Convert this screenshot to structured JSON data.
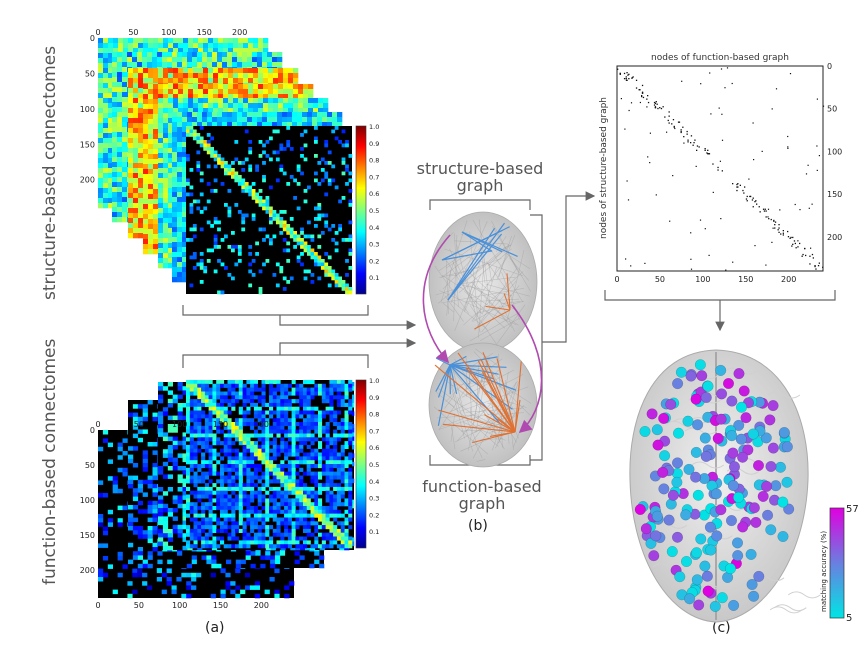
{
  "panel_a": {
    "structure_label": "structure-based connectomes",
    "function_label": "function-based connectomes",
    "caption": "(a)",
    "axis_ticks": [
      "0",
      "50",
      "100",
      "150",
      "200"
    ],
    "colorbar_ticks": [
      "1.0",
      "0.9",
      "0.8",
      "0.7",
      "0.6",
      "0.5",
      "0.4",
      "0.3",
      "0.2",
      "0.1"
    ]
  },
  "panel_b": {
    "structure_graph_label": "structure-based\ngraph",
    "function_graph_label": "function-based\ngraph",
    "caption": "(b)"
  },
  "panel_c": {
    "matrix_title": "nodes of function-based graph",
    "matrix_ylabel": "nodes of structure-based graph",
    "x_ticks": [
      "0",
      "50",
      "100",
      "150",
      "200"
    ],
    "y_ticks": [
      "0",
      "50",
      "100",
      "150",
      "200"
    ],
    "colorbar_label": "matching accuracy (%)",
    "colorbar_max": "57",
    "colorbar_min": "5",
    "caption": "(c)"
  },
  "colors": {
    "structure_edge": "#4a90d9",
    "function_edge": "#e07030",
    "match_arrow": "#b04ab0",
    "colorbar_low": "#00e5e5",
    "colorbar_high": "#e000e0"
  }
}
